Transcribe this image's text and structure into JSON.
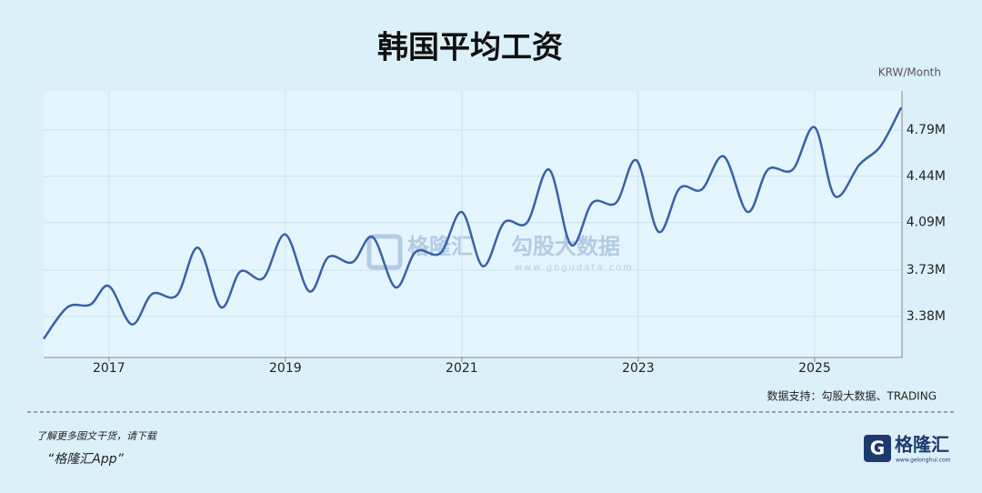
{
  "chart_data": {
    "type": "line",
    "title": "韩国平均工资",
    "y_label": "KRW/Month",
    "source": "数据支持：勾股大数据、TRADING",
    "x": [
      2016.26,
      2016.53,
      2016.79,
      2017.0,
      2017.26,
      2017.49,
      2017.77,
      2018.01,
      2018.27,
      2018.49,
      2018.75,
      2019.0,
      2019.27,
      2019.49,
      2019.76,
      2019.99,
      2020.25,
      2020.48,
      2020.76,
      2021.0,
      2021.24,
      2021.48,
      2021.74,
      2021.99,
      2022.24,
      2022.48,
      2022.75,
      2022.98,
      2023.23,
      2023.47,
      2023.72,
      2023.97,
      2024.24,
      2024.47,
      2024.75,
      2025.0,
      2025.23,
      2025.51,
      2025.75,
      2025.98
    ],
    "series": [
      {
        "name": "韩国平均工资",
        "color": "#3a60a8",
        "values": [
          3210000,
          3450000,
          3470000,
          3610000,
          3320000,
          3550000,
          3540000,
          3900000,
          3450000,
          3720000,
          3670000,
          4000000,
          3570000,
          3830000,
          3790000,
          3980000,
          3600000,
          3870000,
          3860000,
          4170000,
          3760000,
          4090000,
          4090000,
          4490000,
          3920000,
          4240000,
          4240000,
          4560000,
          4020000,
          4350000,
          4340000,
          4590000,
          4170000,
          4490000,
          4490000,
          4810000,
          4290000,
          4530000,
          4670000,
          4960000
        ]
      }
    ],
    "xlim": [
      2016.26,
      2025.99
    ],
    "xticks": [
      2017,
      2019,
      2021,
      2023,
      2025
    ],
    "ylim": [
      3070000,
      5085000
    ],
    "yticks": [
      {
        "value": 3380000,
        "label": "3.38M"
      },
      {
        "value": 3730000,
        "label": "3.73M"
      },
      {
        "value": 4090000,
        "label": "4.09M"
      },
      {
        "value": 4440000,
        "label": "4.44M"
      },
      {
        "value": 4790000,
        "label": "4.79M"
      }
    ],
    "grid": true
  },
  "watermark": {
    "brand": "格隆汇",
    "partner": "勾股大数据",
    "url": "www.gogudata.com"
  },
  "footer": {
    "line1": "了解更多图文干货，请下载",
    "line2": "“格隆汇App”",
    "logo": "格隆汇",
    "logo_url": "www.gelonghui.com"
  }
}
